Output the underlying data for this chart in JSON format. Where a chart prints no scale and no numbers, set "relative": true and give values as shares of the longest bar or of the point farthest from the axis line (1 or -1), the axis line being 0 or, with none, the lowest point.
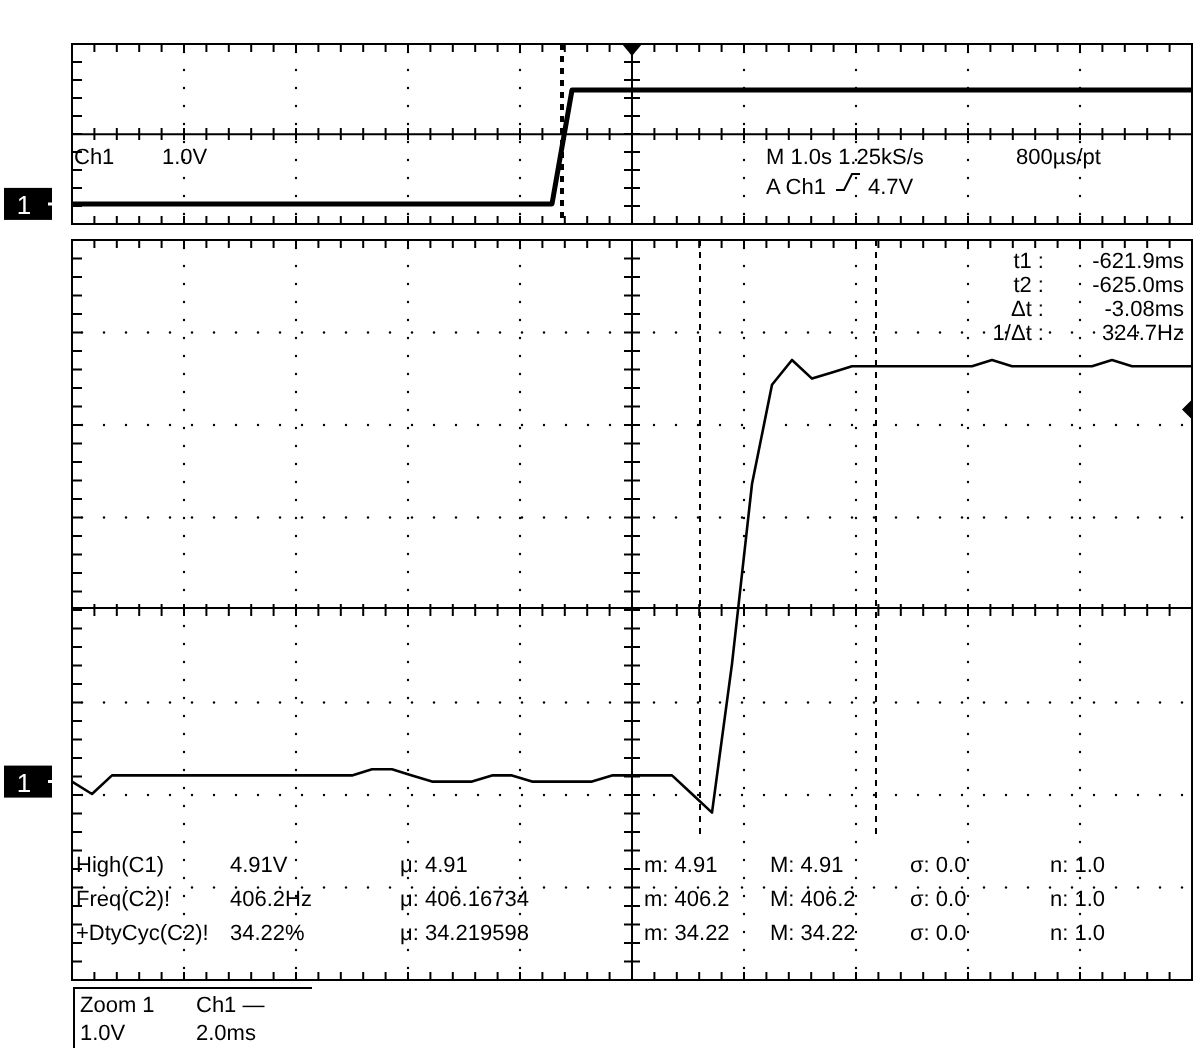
{
  "chart_data": [
    {
      "type": "line",
      "relative": true,
      "color": "#000000",
      "categories": [
        null,
        null,
        null,
        null,
        null,
        null,
        null,
        null,
        null,
        null,
        null,
        null,
        null,
        null,
        null,
        null,
        null,
        null,
        null,
        null,
        null,
        null,
        null,
        null,
        null,
        null,
        null,
        null,
        null,
        null,
        null,
        null,
        null,
        null,
        null,
        null,
        null,
        null,
        null,
        null,
        null,
        null,
        null,
        null,
        null,
        null,
        null,
        null,
        null,
        null,
        null,
        null,
        null,
        null,
        null,
        null,
        null
      ],
      "values": [
        0.15,
        0.15,
        0.15,
        0.15,
        0.15,
        0.15,
        0.15,
        0.15,
        0.15,
        0.15,
        0.15,
        0.15,
        0.15,
        0.15,
        0.15,
        0.15,
        0.15,
        0.15,
        0.15,
        0.15,
        0.15,
        0.15,
        0.15,
        0.15,
        0.15,
        1,
        1,
        1,
        1,
        1,
        1,
        1,
        1,
        1,
        1,
        1,
        1,
        1,
        1,
        1,
        1,
        1,
        1,
        1,
        1,
        1,
        1,
        1,
        1,
        1,
        1,
        1,
        1,
        1,
        1,
        1,
        1
      ],
      "ref_lines": [
        {
          "axis": "y",
          "value": 0.67
        }
      ],
      "annotations": [
        "Ch1",
        "1.0V",
        "M 1.0s 1.25kS/s",
        "800µs/pt",
        "A Ch1",
        "4.7V",
        "1"
      ]
    },
    {
      "type": "line",
      "relative": true,
      "color": "#000000",
      "categories": [
        null,
        null,
        null,
        null,
        null,
        null,
        null,
        null,
        null,
        null,
        null,
        null,
        null,
        null,
        null,
        null,
        null,
        null,
        null,
        null,
        null,
        null,
        null,
        null,
        null,
        null,
        null,
        null,
        null,
        null,
        null,
        null,
        null,
        null,
        null,
        null,
        null,
        null,
        null,
        null,
        null,
        null,
        null,
        null,
        null,
        null,
        null,
        null,
        null,
        null,
        null,
        null,
        null,
        null,
        null,
        null,
        null
      ],
      "values": [
        0.32,
        0.3,
        0.33,
        0.33,
        0.33,
        0.33,
        0.33,
        0.33,
        0.33,
        0.33,
        0.33,
        0.33,
        0.33,
        0.33,
        0.33,
        0.34,
        0.34,
        0.33,
        0.32,
        0.32,
        0.32,
        0.33,
        0.33,
        0.32,
        0.32,
        0.32,
        0.32,
        0.33,
        0.33,
        0.33,
        0.33,
        0.3,
        0.27,
        0.51,
        0.8,
        0.96,
        1,
        0.97,
        0.98,
        0.99,
        0.99,
        0.99,
        0.99,
        0.99,
        0.99,
        0.99,
        1,
        0.99,
        0.99,
        0.99,
        0.99,
        0.99,
        1,
        0.99,
        0.99,
        0.99,
        0.99
      ],
      "ref_lines": [
        {
          "axis": "y",
          "value": 0.6
        }
      ],
      "annotations": [
        "t1 :",
        "-621.9ms",
        "t2 :",
        "-625.0ms",
        "Δt :",
        "-3.08ms",
        "1/Δt :",
        "324.7Hz",
        "High(C1)",
        "4.91V",
        "μ: 4.91",
        "m: 4.91",
        "M: 4.91",
        "σ: 0.0",
        "n: 1.0",
        "Freq(C2)!",
        "406.2Hz",
        "μ: 406.16734",
        "m: 406.2",
        "M: 406.2",
        "σ: 0.0",
        "n: 1.0",
        "+DtyCyc(C2)!",
        "34.22%",
        "μ: 34.219598",
        "m: 34.22",
        "M: 34.22",
        "σ: 0.0",
        "n: 1.0",
        "Zoom 1",
        "Ch1 —",
        "1.0V",
        "2.0ms",
        "1"
      ]
    }
  ]
}
